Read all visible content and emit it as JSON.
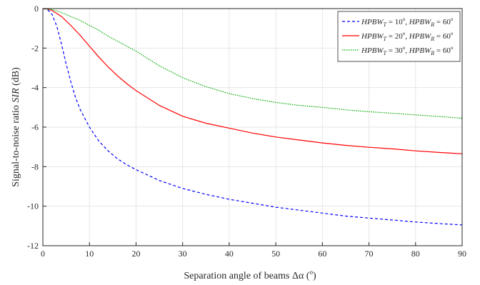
{
  "chart_data": {
    "type": "line",
    "xlabel_text": "Separation angle of beams  Δα  (",
    "xlabel_unit": "o",
    "xlabel_tail": ")",
    "ylabel_text": "Signal-to-noise ratio ",
    "ylabel_sym": "SIR",
    "ylabel_unit": " (dB)",
    "xlim": [
      0,
      90
    ],
    "ylim": [
      -12,
      0
    ],
    "xticks": [
      0,
      10,
      20,
      30,
      40,
      50,
      60,
      70,
      80,
      90
    ],
    "yticks": [
      0,
      -2,
      -4,
      -6,
      -8,
      -10,
      -12
    ],
    "grid": true,
    "legend_position": "top-right",
    "series": [
      {
        "name": "HPBW_T = 10°, HPBW_R = 60°",
        "legend": {
          "t_deg": "10",
          "r_deg": "60"
        },
        "color": "#0000ff",
        "dash": "4,3",
        "x": [
          0,
          1,
          2,
          3,
          4,
          5,
          6,
          7,
          8,
          10,
          12,
          14,
          16,
          18,
          20,
          25,
          30,
          35,
          40,
          45,
          50,
          55,
          60,
          65,
          70,
          75,
          80,
          85,
          90
        ],
        "y": [
          0,
          -0.05,
          -0.3,
          -0.9,
          -1.8,
          -2.8,
          -3.7,
          -4.5,
          -5.1,
          -6.0,
          -6.7,
          -7.2,
          -7.6,
          -7.9,
          -8.15,
          -8.7,
          -9.1,
          -9.4,
          -9.65,
          -9.85,
          -10.05,
          -10.2,
          -10.35,
          -10.5,
          -10.6,
          -10.7,
          -10.8,
          -10.88,
          -10.95
        ]
      },
      {
        "name": "HPBW_T = 20°, HPBW_R = 60°",
        "legend": {
          "t_deg": "20",
          "r_deg": "60"
        },
        "color": "#ff0000",
        "dash": "",
        "x": [
          0,
          1,
          2,
          4,
          6,
          8,
          10,
          12,
          14,
          16,
          18,
          20,
          25,
          30,
          35,
          40,
          45,
          50,
          55,
          60,
          65,
          70,
          75,
          80,
          85,
          90
        ],
        "y": [
          0,
          -0.02,
          -0.1,
          -0.4,
          -0.85,
          -1.35,
          -1.9,
          -2.45,
          -2.95,
          -3.4,
          -3.8,
          -4.15,
          -4.9,
          -5.45,
          -5.8,
          -6.05,
          -6.3,
          -6.5,
          -6.65,
          -6.8,
          -6.92,
          -7.02,
          -7.1,
          -7.2,
          -7.28,
          -7.35
        ]
      },
      {
        "name": "HPBW_T = 30°, HPBW_R = 60°",
        "legend": {
          "t_deg": "30",
          "r_deg": "60"
        },
        "color": "#00aa00",
        "dash": "1.5,1.5",
        "x": [
          0,
          2,
          4,
          6,
          8,
          10,
          12,
          14,
          16,
          18,
          20,
          25,
          30,
          35,
          40,
          45,
          50,
          55,
          60,
          65,
          70,
          75,
          80,
          85,
          90
        ],
        "y": [
          0,
          -0.05,
          -0.2,
          -0.4,
          -0.6,
          -0.85,
          -1.1,
          -1.4,
          -1.65,
          -1.9,
          -2.15,
          -2.9,
          -3.5,
          -3.95,
          -4.3,
          -4.55,
          -4.75,
          -4.9,
          -5.0,
          -5.12,
          -5.22,
          -5.3,
          -5.38,
          -5.46,
          -5.55
        ]
      }
    ]
  }
}
